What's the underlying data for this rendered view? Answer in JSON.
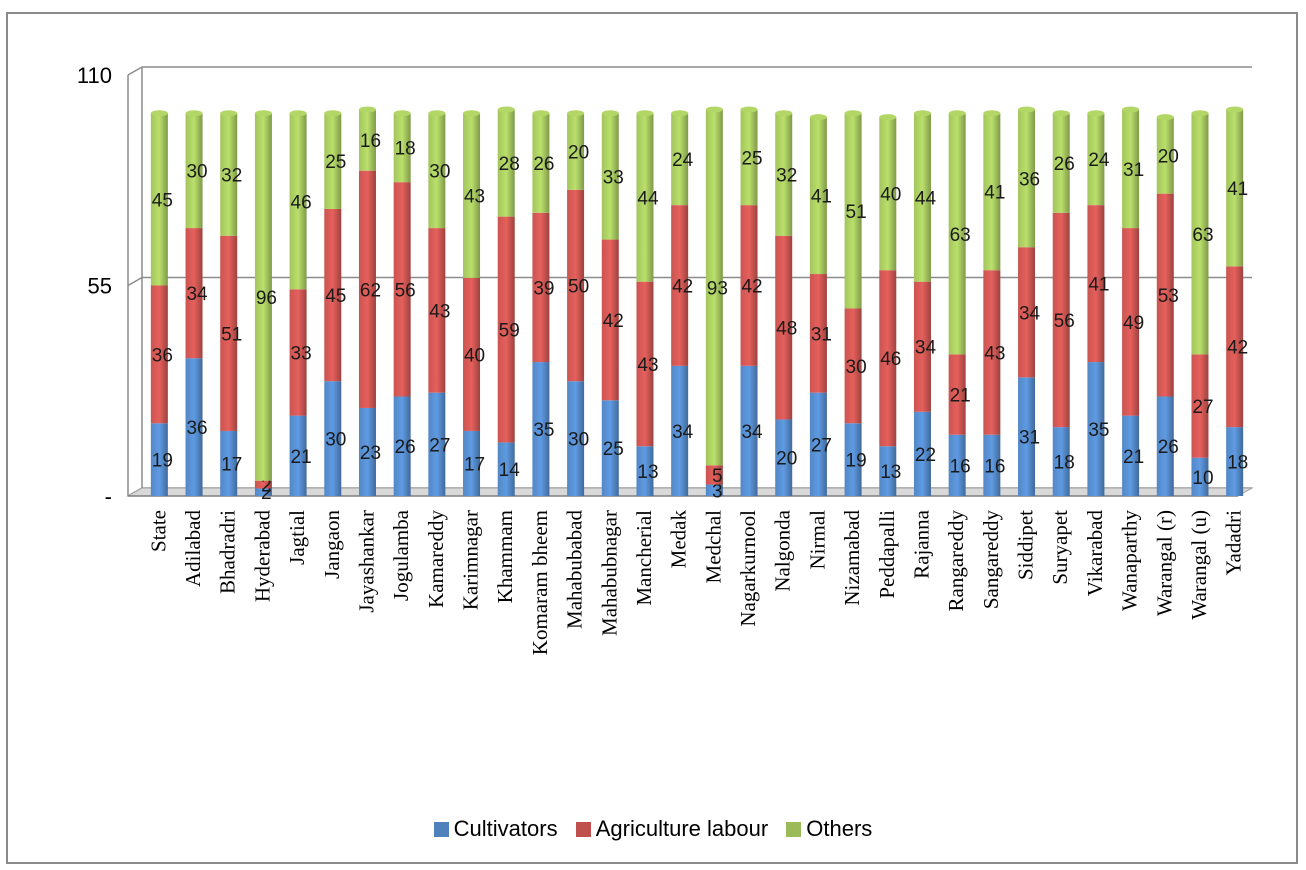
{
  "chart_data": {
    "type": "bar",
    "stacked": true,
    "title": "",
    "xlabel": "",
    "ylabel": "",
    "ylim": [
      0,
      110
    ],
    "y_ticks": [
      {
        "value": 0,
        "label": "-"
      },
      {
        "value": 55,
        "label": "55"
      },
      {
        "value": 110,
        "label": "110"
      }
    ],
    "grid": true,
    "legend_position": "bottom",
    "categories": [
      "State",
      "Adilabad",
      "Bhadradri",
      "Hyderabad",
      "Jagtial",
      "Jangaon",
      "Jayashankar",
      "Jogulamba",
      "Kamareddy",
      "Karimnagar",
      "Khammam",
      "Komaram bheem",
      "Mahabubabad",
      "Mahabubnagar",
      "Mancherial",
      "Medak",
      "Medchal",
      "Nagarkurnool",
      "Nalgonda",
      "Nirmal",
      "Nizamabad",
      "Peddapalli",
      "Rajanna",
      "Rangareddy",
      "Sangareddy",
      "Siddipet",
      "Suryapet",
      "Vikarabad",
      "Wanaparthy",
      "Warangal (r)",
      "Warangal (u)",
      "Yadadri"
    ],
    "series": [
      {
        "name": "Cultivators",
        "color": "#4f81bd",
        "values": [
          19,
          36,
          17,
          2,
          21,
          30,
          23,
          26,
          27,
          17,
          14,
          35,
          30,
          25,
          13,
          34,
          3,
          34,
          20,
          27,
          19,
          13,
          22,
          16,
          16,
          31,
          18,
          35,
          21,
          26,
          10,
          18
        ]
      },
      {
        "name": "Agriculture labour",
        "color": "#c0504d",
        "values": [
          36,
          34,
          51,
          2,
          33,
          45,
          62,
          56,
          43,
          40,
          59,
          39,
          50,
          42,
          43,
          42,
          5,
          42,
          48,
          31,
          30,
          46,
          34,
          21,
          43,
          34,
          56,
          41,
          49,
          53,
          27,
          42
        ]
      },
      {
        "name": "Others",
        "color": "#9bbb59",
        "values": [
          45,
          30,
          32,
          96,
          46,
          25,
          16,
          18,
          30,
          43,
          28,
          26,
          20,
          33,
          44,
          24,
          93,
          25,
          32,
          41,
          51,
          40,
          44,
          63,
          41,
          36,
          26,
          24,
          31,
          20,
          63,
          41
        ]
      }
    ]
  }
}
